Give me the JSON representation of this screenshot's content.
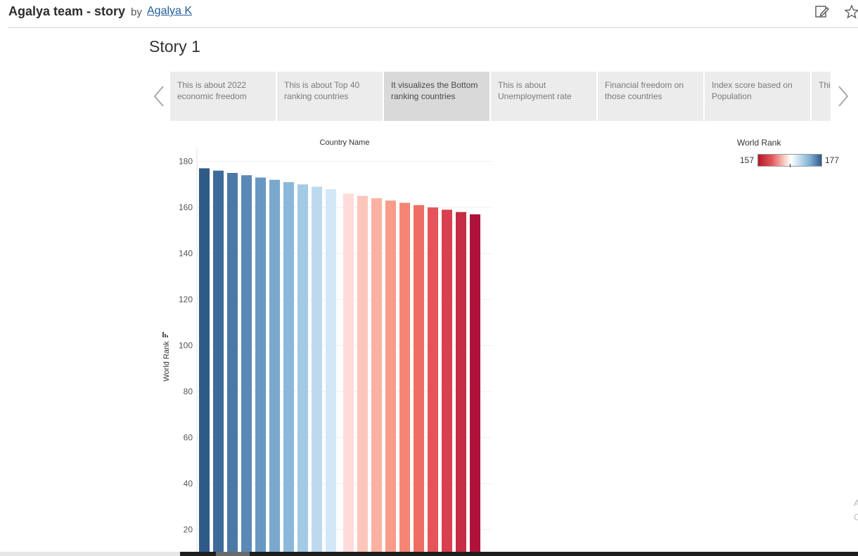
{
  "header": {
    "title": "Agalya team - story",
    "by": "by",
    "author": "Agalya K"
  },
  "story": {
    "title": "Story 1",
    "points": [
      {
        "text": "This is about 2022 economic  freedom",
        "active": false
      },
      {
        "text": "This is about Top 40 ranking countries",
        "active": false
      },
      {
        "text": "It visualizes the Bottom ranking countries",
        "active": true
      },
      {
        "text": "This is about Unemployment rate",
        "active": false
      },
      {
        "text": "Financial freedom on those countries",
        "active": false
      },
      {
        "text": "Index score based on Population",
        "active": false
      },
      {
        "text": "This GDP",
        "active": false
      }
    ]
  },
  "legend": {
    "title": "World Rank",
    "min": "157",
    "max": "177"
  },
  "side_text": "A\nC",
  "icons": {
    "edit": "edit-pencil-icon",
    "favorite": "star-icon",
    "prev": "chevron-left-icon",
    "next": "chevron-right-icon",
    "axis_sort": "sort-icon"
  },
  "colors": {
    "high": "#2e5a87",
    "low": "#b2182b"
  },
  "chart_data": {
    "type": "bar",
    "title": "Country Name",
    "xlabel": "",
    "ylabel": "World Rank",
    "ylim": [
      10,
      186
    ],
    "yticks": [
      20,
      40,
      60,
      80,
      100,
      120,
      140,
      160,
      180
    ],
    "values": [
      177,
      176,
      175,
      174,
      173,
      172,
      171,
      170,
      169,
      168,
      166,
      165,
      164,
      163,
      162,
      161,
      160,
      159,
      158,
      157
    ],
    "colors": [
      "#2e5a87",
      "#3d6b9a",
      "#4a79a8",
      "#5a89b7",
      "#6797c2",
      "#79a7cd",
      "#8bb8da",
      "#a3c9e4",
      "#bcd9ee",
      "#d3e8f6",
      "#fddcda",
      "#fcc6bd",
      "#fbb1a2",
      "#f99c8a",
      "#f48574",
      "#ee6e61",
      "#e4545a",
      "#d83f4f",
      "#c52d45",
      "#b0123c"
    ],
    "grid": true
  }
}
